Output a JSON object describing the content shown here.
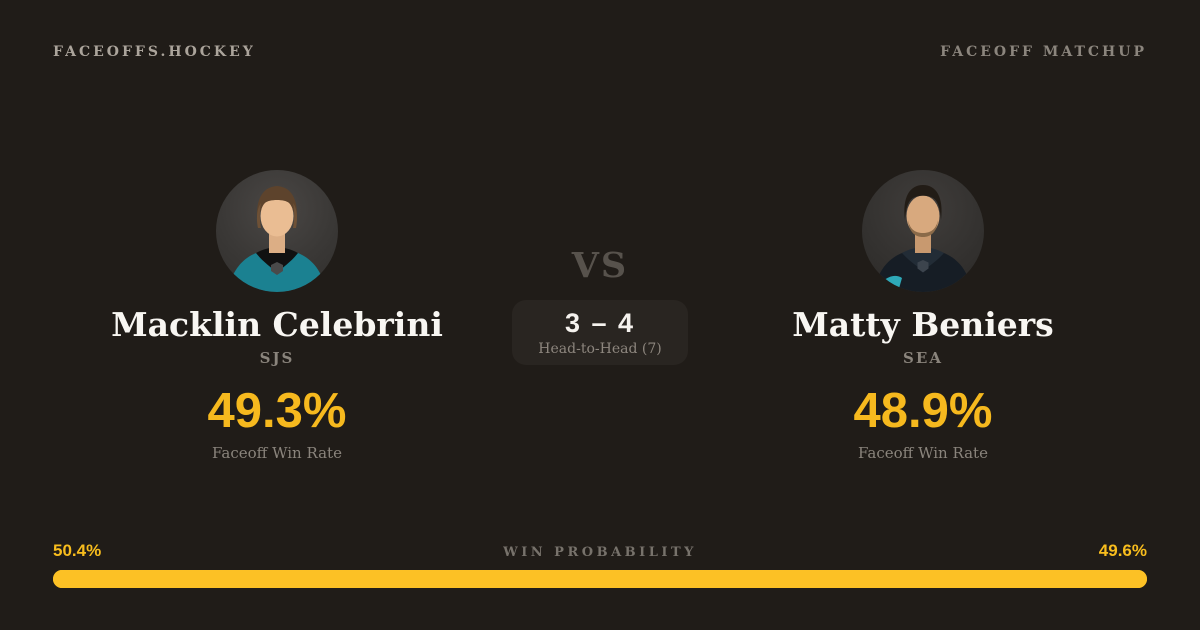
{
  "header": {
    "brand": "FACEOFFS.HOCKEY",
    "page_label": "FACEOFF MATCHUP"
  },
  "matchup": {
    "vs_label": "VS",
    "head_to_head": {
      "score": "3 – 4",
      "label": "Head-to-Head (7)"
    },
    "players": [
      {
        "name": "Macklin Celebrini",
        "team": "SJS",
        "win_rate": "49.3%",
        "stat_label": "Faceoff Win Rate",
        "jersey_color": "#1b8191",
        "yoke_color": "#111111"
      },
      {
        "name": "Matty Beniers",
        "team": "SEA",
        "win_rate": "48.9%",
        "stat_label": "Faceoff Win Rate",
        "jersey_color": "#161d25",
        "yoke_color": "#222c36"
      }
    ]
  },
  "win_probability": {
    "label": "WIN PROBABILITY",
    "left_value": "50.4%",
    "right_value": "49.6%",
    "left_pct": 50.4,
    "right_pct": 49.6,
    "bar_color": "#fcc125"
  },
  "theme": {
    "background": "#201c18",
    "accent": "#f6b91e",
    "text_primary": "#f8f6f2",
    "text_muted": "#8a847c"
  }
}
